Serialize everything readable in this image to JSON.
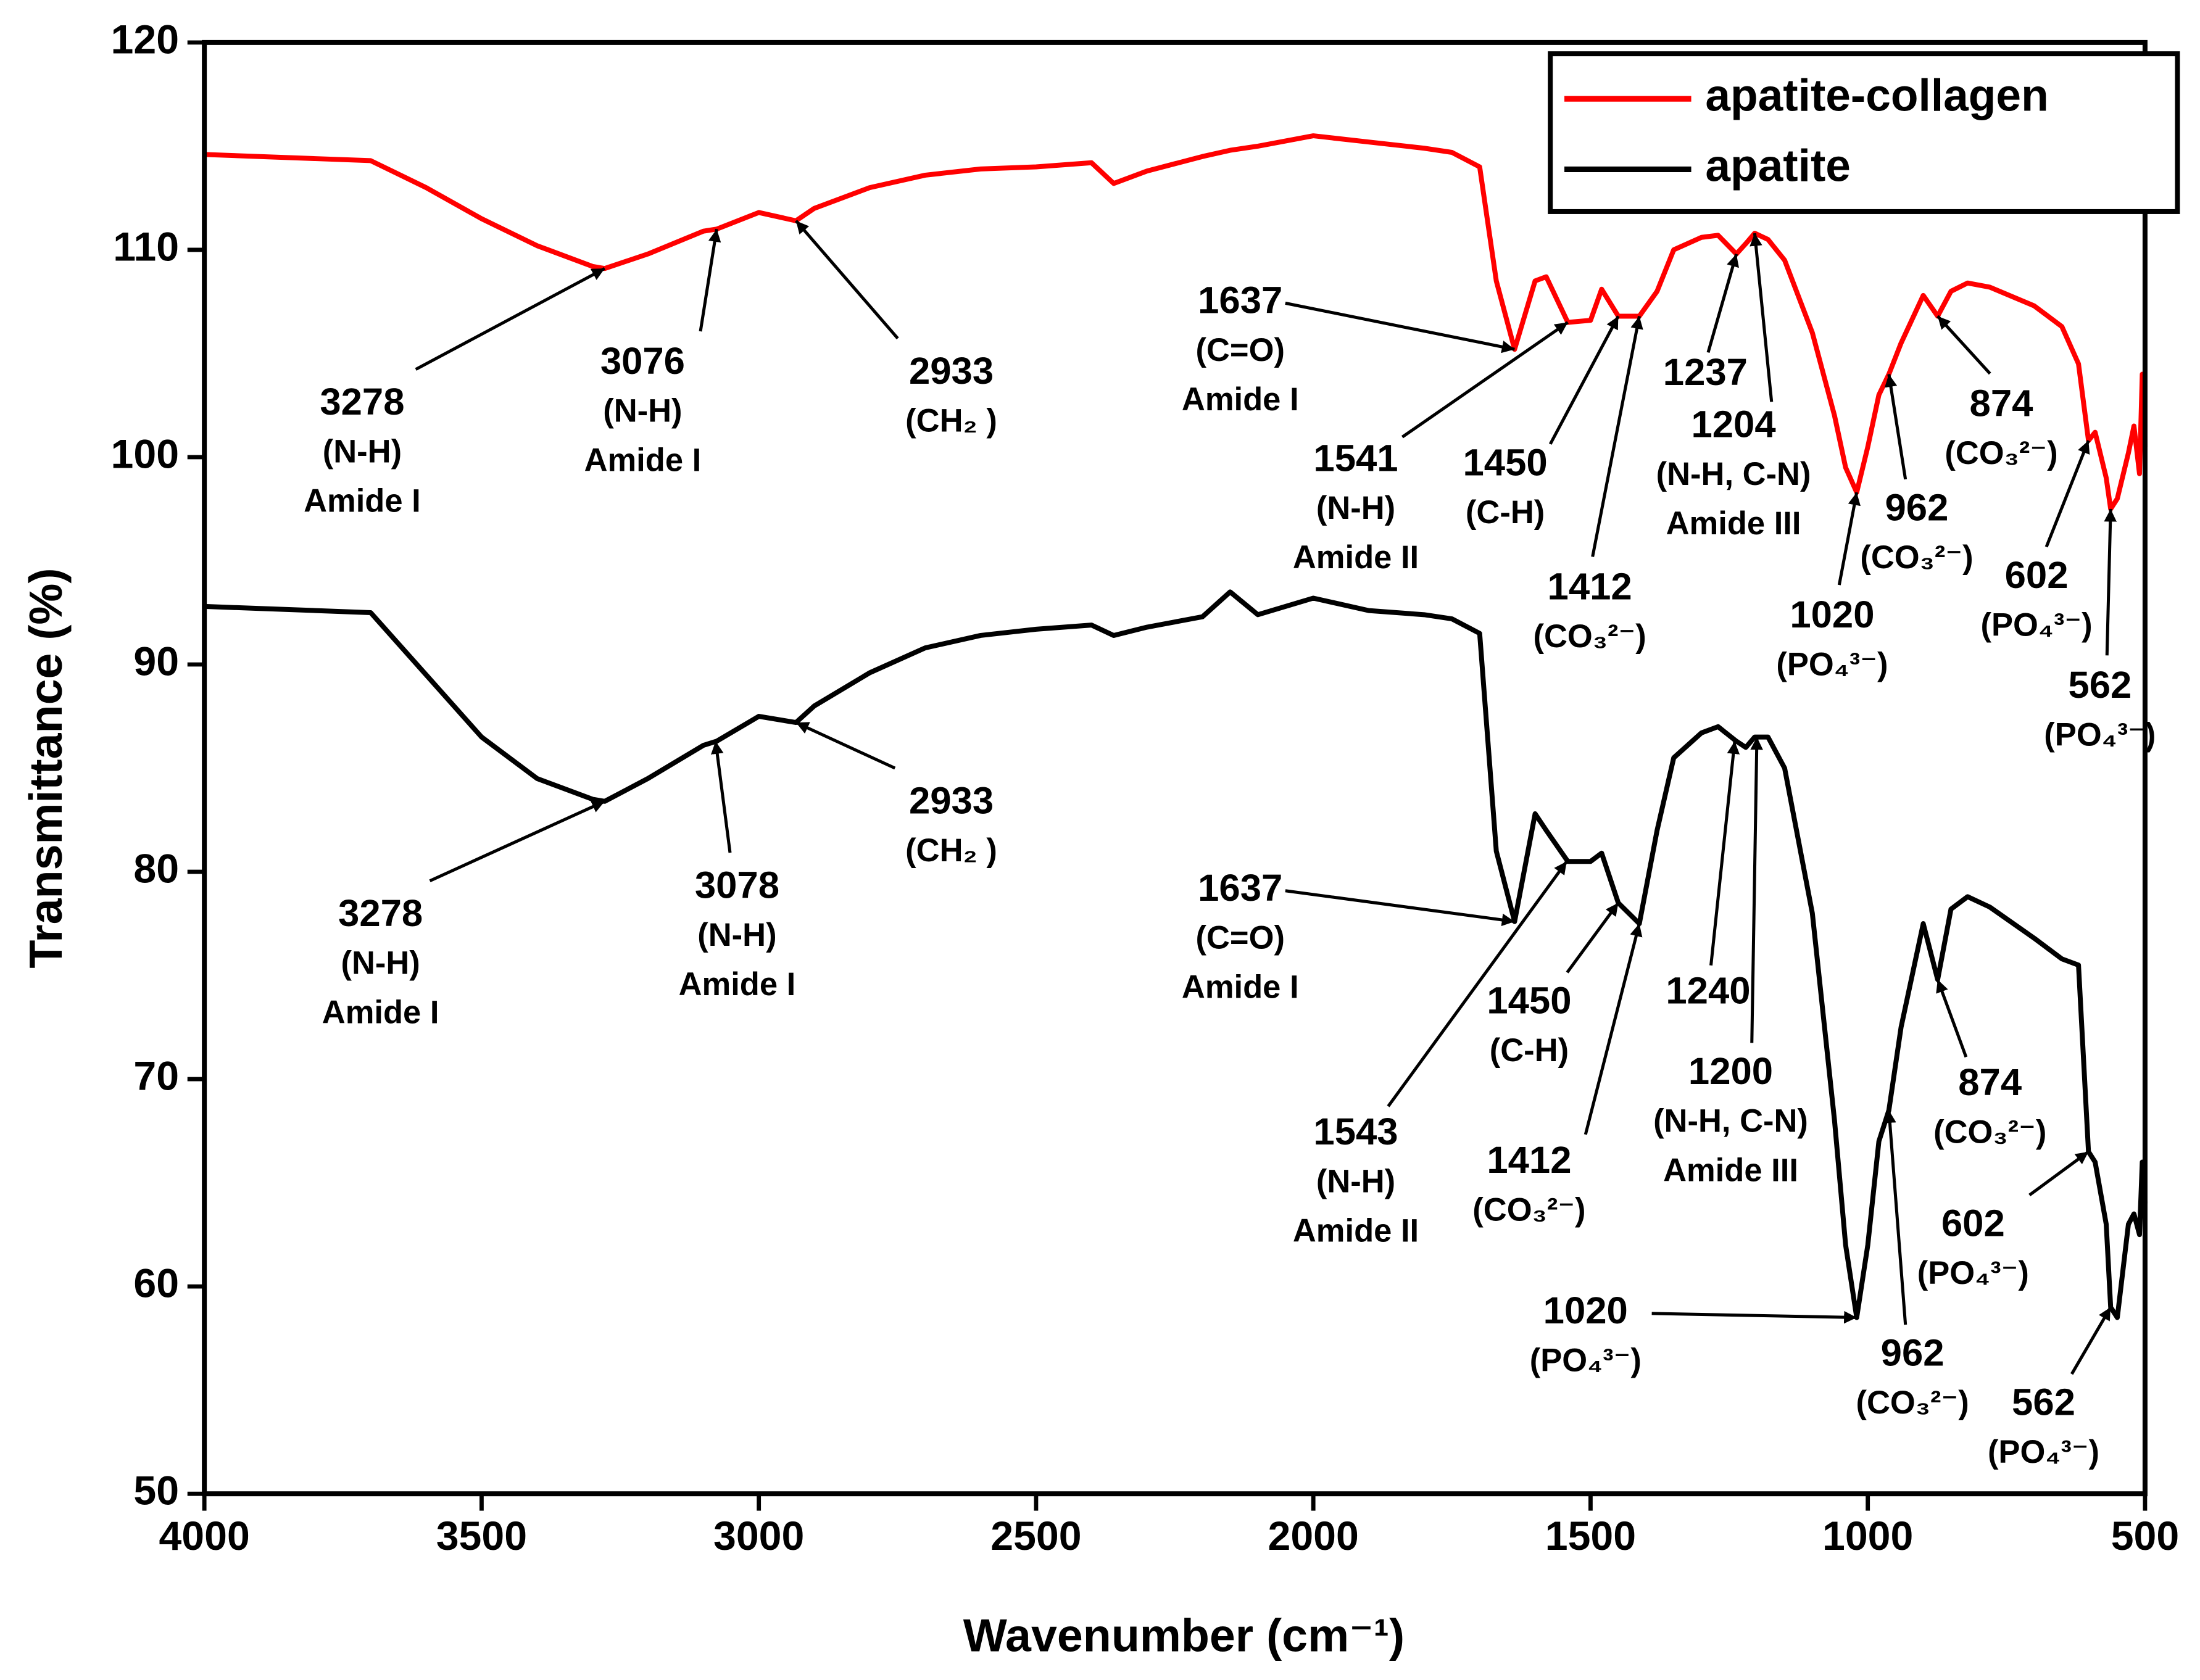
{
  "chart_data": {
    "type": "line",
    "x_label": "Wavenumber (cm⁻¹)",
    "y_label": "Transmittance (%)",
    "xlim": [
      4000,
      500
    ],
    "ylim": [
      50,
      120
    ],
    "xticks": [
      4000,
      3500,
      3000,
      2500,
      2000,
      1500,
      1000,
      500
    ],
    "yticks": [
      50,
      60,
      70,
      80,
      90,
      100,
      110,
      120
    ],
    "legend": "upper right",
    "x": [
      4000,
      3900,
      3800,
      3700,
      3600,
      3500,
      3400,
      3300,
      3278,
      3200,
      3100,
      3076,
      3000,
      2933,
      2900,
      2800,
      2700,
      2600,
      2500,
      2400,
      2360,
      2300,
      2200,
      2150,
      2100,
      2000,
      1900,
      1800,
      1750,
      1700,
      1670,
      1637,
      1600,
      1580,
      1541,
      1500,
      1480,
      1450,
      1412,
      1380,
      1350,
      1300,
      1270,
      1237,
      1220,
      1204,
      1180,
      1150,
      1100,
      1060,
      1040,
      1020,
      1000,
      980,
      962,
      940,
      900,
      874,
      850,
      820,
      780,
      700,
      650,
      620,
      602,
      590,
      570,
      562,
      550,
      530,
      520,
      510,
      505,
      500
    ],
    "series": [
      {
        "name": "apatite-collagen",
        "color": "#ff0000",
        "values": [
          114.6,
          114.5,
          114.4,
          114.3,
          113.0,
          111.5,
          110.2,
          109.2,
          109.1,
          109.8,
          110.9,
          111.0,
          111.8,
          111.4,
          112.0,
          113.0,
          113.6,
          113.9,
          114.0,
          114.2,
          113.2,
          113.8,
          114.5,
          114.8,
          115.0,
          115.5,
          115.2,
          114.9,
          114.7,
          114.0,
          108.5,
          105.2,
          108.5,
          108.7,
          106.5,
          106.6,
          108.1,
          106.8,
          106.8,
          108.0,
          110.0,
          110.6,
          110.7,
          109.8,
          110.3,
          110.8,
          110.5,
          109.5,
          106.0,
          102.0,
          99.5,
          98.3,
          100.5,
          103.0,
          104.0,
          105.5,
          107.8,
          106.8,
          108.0,
          108.4,
          108.2,
          107.3,
          106.3,
          104.5,
          100.8,
          101.2,
          99.0,
          97.5,
          98.0,
          100.2,
          101.5,
          99.2,
          104.0,
          100.5
        ]
      },
      {
        "name": "apatite",
        "color": "#000000",
        "values": [
          92.8,
          92.7,
          92.6,
          92.5,
          89.5,
          86.5,
          84.5,
          83.5,
          83.4,
          84.5,
          86.1,
          86.3,
          87.5,
          87.2,
          88.0,
          89.6,
          90.8,
          91.4,
          91.7,
          91.9,
          91.4,
          91.8,
          92.3,
          93.5,
          92.4,
          93.2,
          92.6,
          92.4,
          92.2,
          91.5,
          81.0,
          77.6,
          82.8,
          82.0,
          80.5,
          80.5,
          80.9,
          78.5,
          77.5,
          82.0,
          85.5,
          86.7,
          87.0,
          86.3,
          86.0,
          86.5,
          86.5,
          85.0,
          78.0,
          68.0,
          62.0,
          58.5,
          62.0,
          67.0,
          68.5,
          72.5,
          77.5,
          74.8,
          78.2,
          78.8,
          78.3,
          76.8,
          75.8,
          75.5,
          66.5,
          66.0,
          63.0,
          59.0,
          58.5,
          63.0,
          63.5,
          62.5,
          66.0,
          64.0
        ]
      }
    ],
    "annotations": [
      {
        "text": [
          "3278",
          "(N-H)",
          "Amide I"
        ],
        "x": 3278,
        "y": 109.1
      },
      {
        "text": [
          "3076",
          "(N-H)",
          "Amide I"
        ],
        "x": 3076,
        "y": 111.0
      },
      {
        "text": [
          "2933",
          "(CH₂ )"
        ],
        "x": 2933,
        "y": 111.4
      },
      {
        "text": [
          "1637",
          "(C=O)",
          "Amide I"
        ],
        "x": 1637,
        "y": 105.2
      },
      {
        "text": [
          "1541",
          "(N-H)",
          "Amide II"
        ],
        "x": 1541,
        "y": 106.5
      },
      {
        "text": [
          "1450",
          "(C-H)"
        ],
        "x": 1450,
        "y": 106.8
      },
      {
        "text": [
          "1412",
          "(CO₃²⁻)"
        ],
        "x": 1412,
        "y": 106.8
      },
      {
        "text": [
          "1237"
        ],
        "x": 1237,
        "y": 109.8
      },
      {
        "text": [
          "1204",
          "(N-H, C-N)",
          "Amide III"
        ],
        "x": 1204,
        "y": 110.8
      },
      {
        "text": [
          "1020",
          "(PO₄³⁻)"
        ],
        "x": 1020,
        "y": 98.3
      },
      {
        "text": [
          "962",
          "(CO₃²⁻)"
        ],
        "x": 962,
        "y": 104.0
      },
      {
        "text": [
          "874",
          "(CO₃²⁻)"
        ],
        "x": 874,
        "y": 106.8
      },
      {
        "text": [
          "602",
          "(PO₄³⁻)"
        ],
        "x": 602,
        "y": 100.8
      },
      {
        "text": [
          "562",
          "(PO₄³⁻)"
        ],
        "x": 562,
        "y": 97.5
      },
      {
        "text": [
          "3278",
          "(N-H)",
          "Amide I"
        ],
        "x": 3278,
        "y": 83.4
      },
      {
        "text": [
          "3078",
          "(N-H)",
          "Amide I"
        ],
        "x": 3078,
        "y": 86.3
      },
      {
        "text": [
          "2933",
          "(CH₂ )"
        ],
        "x": 2933,
        "y": 87.2
      },
      {
        "text": [
          "1637",
          "(C=O)",
          "Amide I"
        ],
        "x": 1637,
        "y": 77.6
      },
      {
        "text": [
          "1543",
          "(N-H)",
          "Amide II"
        ],
        "x": 1543,
        "y": 80.5
      },
      {
        "text": [
          "1450",
          "(C-H)"
        ],
        "x": 1450,
        "y": 78.5
      },
      {
        "text": [
          "1412",
          "(CO₃²⁻)"
        ],
        "x": 1412,
        "y": 77.5
      },
      {
        "text": [
          "1240"
        ],
        "x": 1240,
        "y": 86.3
      },
      {
        "text": [
          "1200",
          "(N-H, C-N)",
          "Amide III"
        ],
        "x": 1200,
        "y": 86.5
      },
      {
        "text": [
          "1020",
          "(PO₄³⁻)"
        ],
        "x": 1020,
        "y": 58.5
      },
      {
        "text": [
          "962",
          "(CO₃²⁻)"
        ],
        "x": 962,
        "y": 68.5
      },
      {
        "text": [
          "874",
          "(CO₃²⁻)"
        ],
        "x": 874,
        "y": 74.8
      },
      {
        "text": [
          "602",
          "(PO₄³⁻)"
        ],
        "x": 602,
        "y": 66.5
      },
      {
        "text": [
          "562",
          "(PO₄³⁻)"
        ],
        "x": 562,
        "y": 59.0
      }
    ]
  }
}
